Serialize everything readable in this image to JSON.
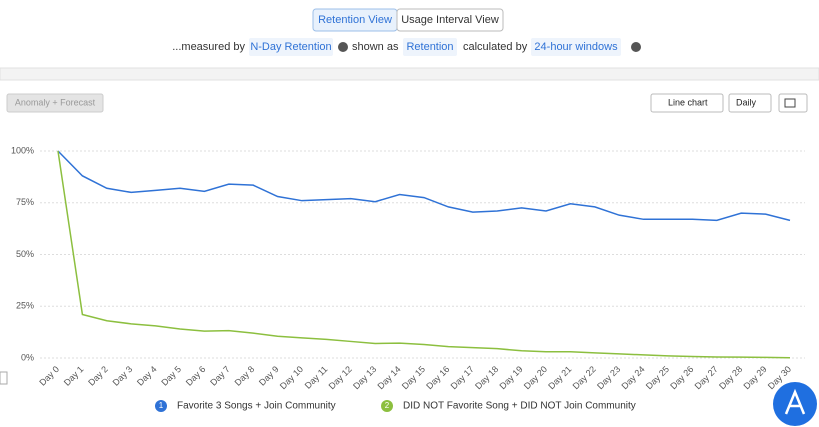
{
  "ui": {
    "view_toggle": [
      "Retention View",
      "Usage Interval View"
    ],
    "measure_bar": {
      "measured_by_label": "...measured by",
      "measured_by": "N-Day Retention",
      "shown_as_label": "shown as",
      "shown_as": "Retention",
      "calculated_by_label": "calculated by",
      "calculated_by": "24-hour windows"
    },
    "anomaly_button": "Anomaly + Forecast",
    "chart_type_button": "Line chart",
    "interval_button": "Daily",
    "legend_badges": [
      "1",
      "2"
    ]
  },
  "chart_data": {
    "type": "line",
    "categories": [
      "Day 0",
      "Day 1",
      "Day 2",
      "Day 3",
      "Day 4",
      "Day 5",
      "Day 6",
      "Day 7",
      "Day 8",
      "Day 9",
      "Day 10",
      "Day 11",
      "Day 12",
      "Day 13",
      "Day 14",
      "Day 15",
      "Day 16",
      "Day 17",
      "Day 18",
      "Day 19",
      "Day 20",
      "Day 21",
      "Day 22",
      "Day 23",
      "Day 24",
      "Day 25",
      "Day 26",
      "Day 27",
      "Day 28",
      "Day 29",
      "Day 30"
    ],
    "series": [
      {
        "name": "Favorite 3 Songs + Join Community",
        "color": "#2f72d6",
        "values": [
          100,
          88,
          82,
          80,
          81,
          82,
          80.5,
          84,
          83.5,
          78,
          76,
          76.5,
          77,
          75.5,
          79,
          77.5,
          73,
          70.5,
          71,
          72.5,
          71,
          74.5,
          73,
          69,
          67,
          67,
          67,
          66.5,
          70,
          69.5,
          66.5
        ]
      },
      {
        "name": "DID NOT Favorite Song + DID NOT Join Community",
        "color": "#8cbf3f",
        "values": [
          100,
          21,
          18,
          16.5,
          15.5,
          14,
          13,
          13.2,
          12,
          10.5,
          9.7,
          9,
          8,
          7,
          7.2,
          6.5,
          5.5,
          5,
          4.5,
          3.5,
          3,
          3,
          2.5,
          2,
          1.5,
          1,
          0.7,
          0.5,
          0.4,
          0.3,
          0.1
        ]
      }
    ],
    "ylim": [
      0,
      100
    ],
    "yticks": [
      {
        "value": 0,
        "label": "0%"
      },
      {
        "value": 25,
        "label": "25%"
      },
      {
        "value": 50,
        "label": "50%"
      },
      {
        "value": 75,
        "label": "75%"
      },
      {
        "value": 100,
        "label": "100%"
      }
    ],
    "grid": true
  }
}
